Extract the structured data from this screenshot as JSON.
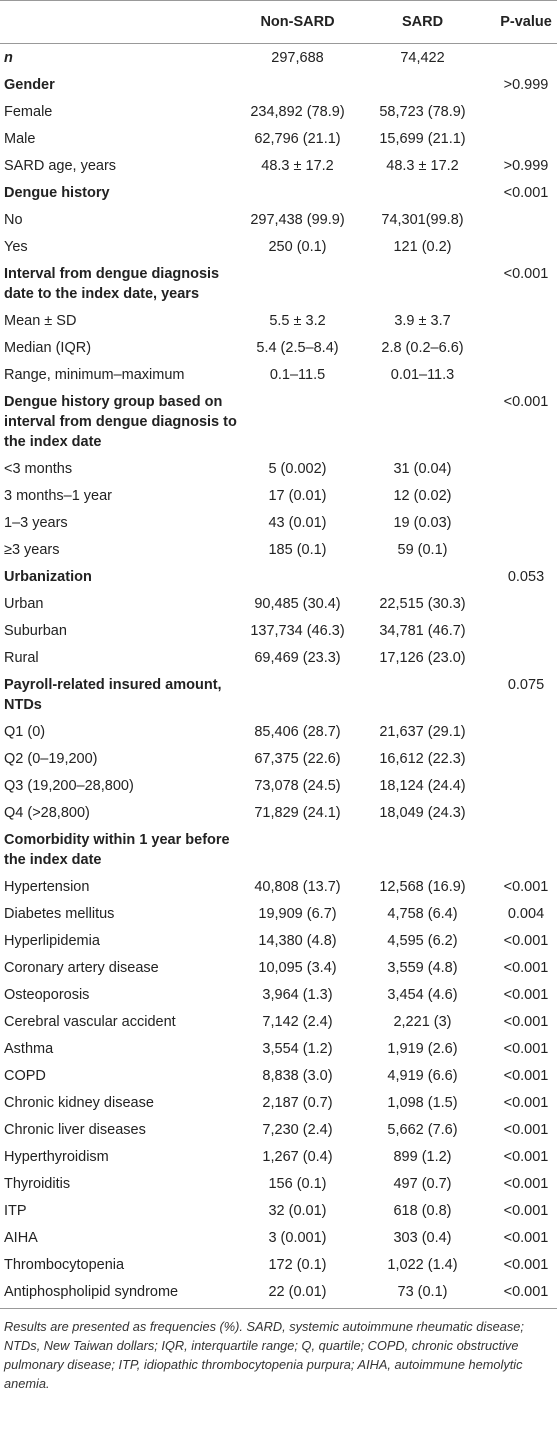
{
  "table": {
    "header": {
      "label": "",
      "non_sard": "Non-SARD",
      "sard": "SARD",
      "p": "P-value"
    },
    "rows": [
      {
        "label": "n",
        "non_sard": "297,688",
        "sard": "74,422",
        "style": "bold-italic"
      },
      {
        "label": "Gender",
        "p": ">0.999",
        "style": "bold"
      },
      {
        "label": "Female",
        "non_sard": "234,892 (78.9)",
        "sard": "58,723 (78.9)"
      },
      {
        "label": "Male",
        "non_sard": "62,796 (21.1)",
        "sard": "15,699 (21.1)"
      },
      {
        "label": "SARD age, years",
        "non_sard": "48.3 ± 17.2",
        "sard": "48.3 ± 17.2",
        "p": ">0.999"
      },
      {
        "label": "Dengue history",
        "p": "<0.001",
        "style": "bold"
      },
      {
        "label": "No",
        "non_sard": "297,438 (99.9)",
        "sard": "74,301(99.8)"
      },
      {
        "label": "Yes",
        "non_sard": "250 (0.1)",
        "sard": "121 (0.2)"
      },
      {
        "label": "Interval from dengue diagnosis date to the index date, years",
        "p": "<0.001",
        "style": "bold"
      },
      {
        "label": "Mean ± SD",
        "non_sard": "5.5 ± 3.2",
        "sard": "3.9 ± 3.7"
      },
      {
        "label": "Median (IQR)",
        "non_sard": "5.4 (2.5–8.4)",
        "sard": "2.8 (0.2–6.6)"
      },
      {
        "label": "Range, minimum–maximum",
        "non_sard": "0.1–11.5",
        "sard": "0.01–11.3"
      },
      {
        "label": "Dengue history group based on interval from dengue diagnosis to the index date",
        "p": "<0.001",
        "style": "bold"
      },
      {
        "label": "<3 months",
        "non_sard": "5 (0.002)",
        "sard": "31 (0.04)"
      },
      {
        "label": "3 months–1 year",
        "non_sard": "17 (0.01)",
        "sard": "12 (0.02)"
      },
      {
        "label": "1–3 years",
        "non_sard": "43 (0.01)",
        "sard": "19 (0.03)"
      },
      {
        "label": "≥3 years",
        "non_sard": "185 (0.1)",
        "sard": "59 (0.1)"
      },
      {
        "label": "Urbanization",
        "p": "0.053",
        "style": "bold"
      },
      {
        "label": "Urban",
        "non_sard": "90,485 (30.4)",
        "sard": "22,515 (30.3)"
      },
      {
        "label": "Suburban",
        "non_sard": "137,734 (46.3)",
        "sard": "34,781 (46.7)"
      },
      {
        "label": "Rural",
        "non_sard": "69,469 (23.3)",
        "sard": "17,126 (23.0)"
      },
      {
        "label": "Payroll-related insured amount, NTDs",
        "p": "0.075",
        "style": "bold"
      },
      {
        "label": "Q1 (0)",
        "non_sard": "85,406 (28.7)",
        "sard": "21,637 (29.1)"
      },
      {
        "label": "Q2 (0–19,200)",
        "non_sard": "67,375 (22.6)",
        "sard": "16,612 (22.3)"
      },
      {
        "label": "Q3 (19,200–28,800)",
        "non_sard": "73,078 (24.5)",
        "sard": "18,124 (24.4)"
      },
      {
        "label": "Q4 (>28,800)",
        "non_sard": "71,829 (24.1)",
        "sard": "18,049 (24.3)"
      },
      {
        "label": "Comorbidity within 1 year before the index date",
        "style": "bold"
      },
      {
        "label": "Hypertension",
        "non_sard": "40,808 (13.7)",
        "sard": "12,568 (16.9)",
        "p": "<0.001"
      },
      {
        "label": "Diabetes mellitus",
        "non_sard": "19,909 (6.7)",
        "sard": "4,758 (6.4)",
        "p": "0.004"
      },
      {
        "label": "Hyperlipidemia",
        "non_sard": "14,380 (4.8)",
        "sard": "4,595 (6.2)",
        "p": "<0.001"
      },
      {
        "label": "Coronary artery disease",
        "non_sard": "10,095 (3.4)",
        "sard": "3,559 (4.8)",
        "p": "<0.001"
      },
      {
        "label": "Osteoporosis",
        "non_sard": "3,964 (1.3)",
        "sard": "3,454 (4.6)",
        "p": "<0.001"
      },
      {
        "label": "Cerebral vascular accident",
        "non_sard": "7,142 (2.4)",
        "sard": "2,221 (3)",
        "p": "<0.001"
      },
      {
        "label": "Asthma",
        "non_sard": "3,554 (1.2)",
        "sard": "1,919 (2.6)",
        "p": "<0.001"
      },
      {
        "label": "COPD",
        "non_sard": "8,838 (3.0)",
        "sard": "4,919 (6.6)",
        "p": "<0.001"
      },
      {
        "label": "Chronic kidney disease",
        "non_sard": "2,187 (0.7)",
        "sard": "1,098 (1.5)",
        "p": "<0.001"
      },
      {
        "label": "Chronic liver diseases",
        "non_sard": "7,230 (2.4)",
        "sard": "5,662 (7.6)",
        "p": "<0.001"
      },
      {
        "label": "Hyperthyroidism",
        "non_sard": "1,267 (0.4)",
        "sard": "899 (1.2)",
        "p": "<0.001"
      },
      {
        "label": "Thyroiditis",
        "non_sard": "156 (0.1)",
        "sard": "497 (0.7)",
        "p": "<0.001"
      },
      {
        "label": "ITP",
        "non_sard": "32 (0.01)",
        "sard": "618 (0.8)",
        "p": "<0.001"
      },
      {
        "label": "AIHA",
        "non_sard": "3 (0.001)",
        "sard": "303 (0.4)",
        "p": "<0.001"
      },
      {
        "label": "Thrombocytopenia",
        "non_sard": "172 (0.1)",
        "sard": "1,022 (1.4)",
        "p": "<0.001"
      },
      {
        "label": "Antiphospholipid syndrome",
        "non_sard": "22 (0.01)",
        "sard": "73 (0.1)",
        "p": "<0.001"
      }
    ],
    "footnote": "Results are presented as frequencies (%). SARD, systemic autoimmune rheumatic disease; NTDs, New Taiwan dollars; IQR, interquartile range; Q, quartile; COPD, chronic obstructive pulmonary disease; ITP, idiopathic thrombocytopenia purpura; AIHA, autoimmune hemolytic anemia."
  }
}
